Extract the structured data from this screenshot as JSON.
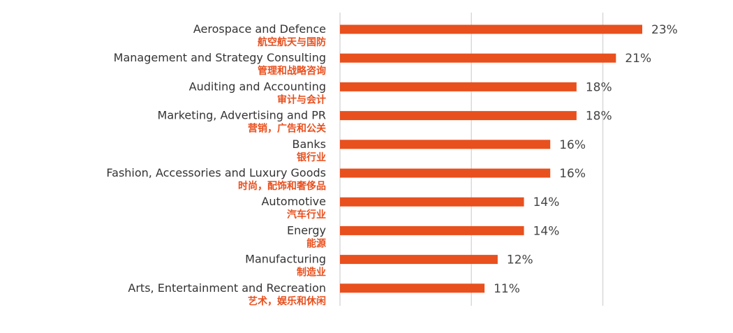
{
  "chart_data": {
    "type": "bar",
    "orientation": "horizontal",
    "title": "",
    "xlabel": "",
    "ylabel": "",
    "xlim": [
      0,
      24
    ],
    "grid": true,
    "legend": "none",
    "bar_color": "#e8501e",
    "grid_color": "#d9d9d9",
    "categories": [
      {
        "en": "Aerospace and Defence",
        "zh": "航空航天与国防"
      },
      {
        "en": "Management and Strategy Consulting",
        "zh": "管理和战略咨询"
      },
      {
        "en": "Auditing and Accounting",
        "zh": "审计与会计"
      },
      {
        "en": "Marketing, Advertising and PR",
        "zh": "营销，广告和公关"
      },
      {
        "en": "Banks",
        "zh": "银行业"
      },
      {
        "en": "Fashion, Accessories and Luxury Goods",
        "zh": "时尚，配饰和奢侈品"
      },
      {
        "en": "Automotive",
        "zh": "汽车行业"
      },
      {
        "en": "Energy",
        "zh": "能源"
      },
      {
        "en": "Manufacturing",
        "zh": "制造业"
      },
      {
        "en": "Arts, Entertainment and Recreation",
        "zh": "艺术，娱乐和休闲"
      }
    ],
    "values": [
      23,
      21,
      18,
      18,
      16,
      16,
      14,
      14,
      12,
      11
    ],
    "value_labels": [
      "23%",
      "21%",
      "18%",
      "18%",
      "16%",
      "16%",
      "14%",
      "14%",
      "12%",
      "11%"
    ]
  }
}
